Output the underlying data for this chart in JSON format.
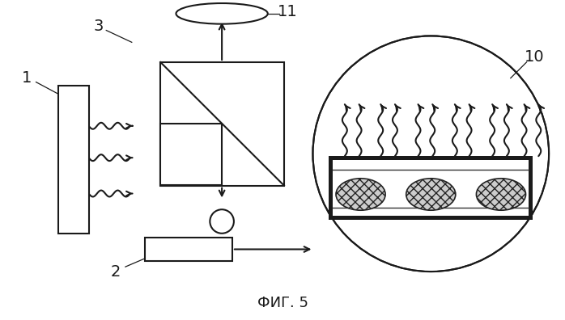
{
  "fig_label": "ФИГ. 5",
  "bg_color": "#ffffff",
  "line_color": "#1a1a1a",
  "figsize": [
    6.98,
    3.96
  ],
  "dpi": 100
}
